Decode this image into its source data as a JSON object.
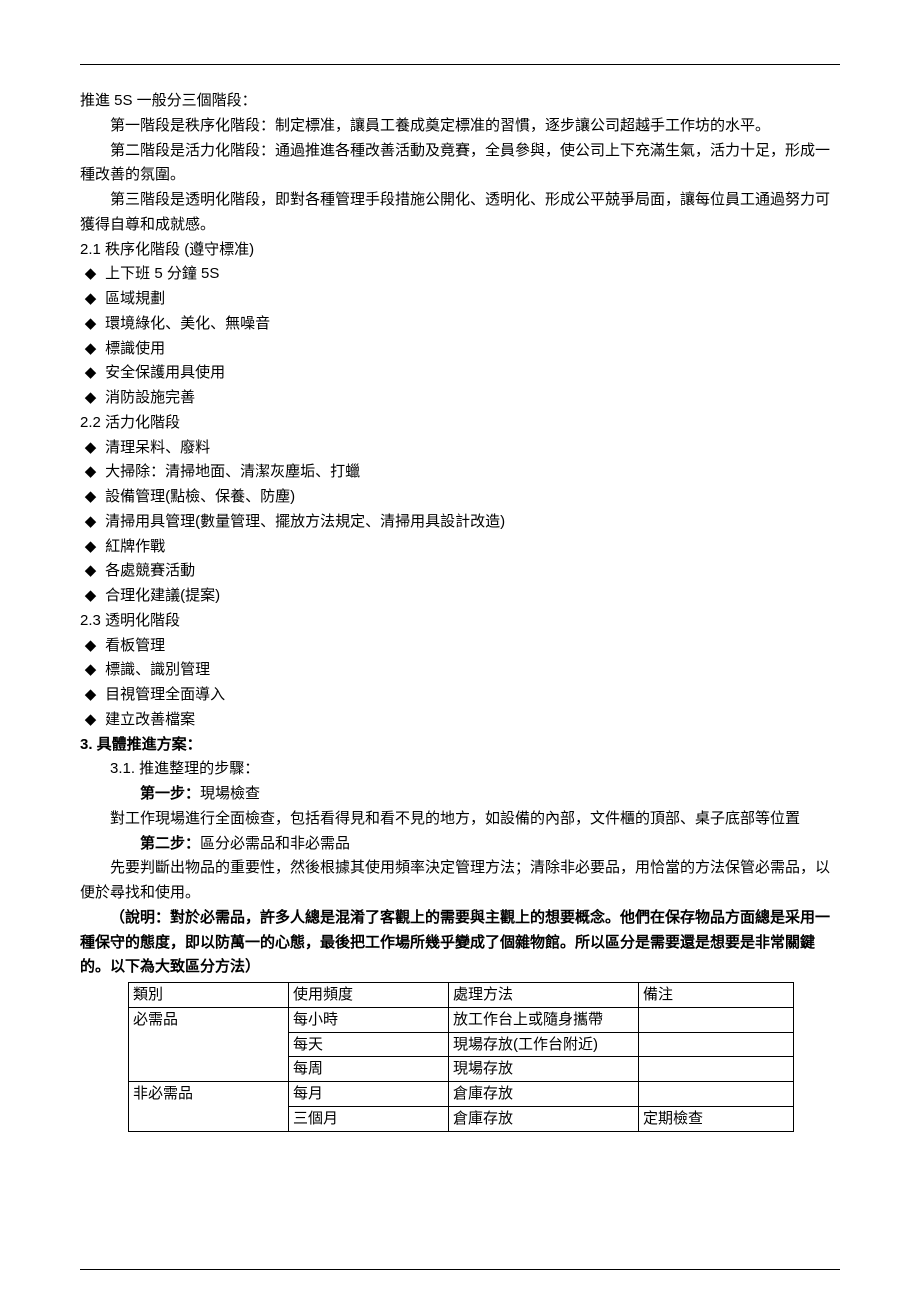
{
  "intro": [
    "推進 5S 一般分三個階段：",
    "第一階段是秩序化階段：制定標准，讓員工養成奠定標准的習慣，逐步讓公司超越手工作坊的水平。",
    "第二階段是活力化階段：通過推進各種改善活動及竟賽，全員參與，使公司上下充滿生氣，活力十足，形成一種改善的氛圍。",
    "第三階段是透明化階段，即對各種管理手段措施公開化、透明化、形成公平兢爭局面，讓每位員工通過努力可獲得自尊和成就感。"
  ],
  "s21": {
    "head": "2.1 秩序化階段 (遵守標准)",
    "items": [
      "上下班 5 分鐘 5S",
      "區域規劃",
      "環境綠化、美化、無噪音",
      "標識使用",
      "安全保護用具使用",
      "消防設施完善"
    ]
  },
  "s22": {
    "head": "2.2 活力化階段",
    "items": [
      "清理呆料、廢料",
      "大掃除：清掃地面、清潔灰塵垢、打蠟",
      "設備管理(點檢、保養、防塵)",
      "清掃用具管理(數量管理、擺放方法規定、清掃用具設計改造)",
      "紅牌作戰",
      "各處競賽活動",
      "合理化建議(提案)"
    ]
  },
  "s23": {
    "head": "2.3 透明化階段",
    "items": [
      "看板管理",
      "標識、識別管理",
      "目視管理全面導入",
      "建立改善檔案"
    ]
  },
  "s3head": "3. 具體推進方案：",
  "s31head": "3.1. 推進整理的步驟：",
  "step1": {
    "label": "第一步：",
    "title": "現場檢查",
    "body": "對工作現場進行全面檢查，包括看得見和看不見的地方，如設備的內部，文件櫃的頂部、桌子底部等位置"
  },
  "step2": {
    "label": "第二步：",
    "title": "區分必需品和非必需品",
    "body": "先要判斷出物品的重要性，然後根據其使用頻率決定管理方法；清除非必要品，用恰當的方法保管必需品，以便於尋找和使用。"
  },
  "note": "（說明：對於必需品，許多人總是混淆了客觀上的需要與主觀上的想要概念。他們在保存物品方面總是采用一種保守的態度，即以防萬一的心態，最後把工作場所幾乎變成了個雜物館。所以區分是需要還是想要是非常關鍵的。以下為大致區分方法）",
  "table": {
    "cols": [
      "類別",
      "使用頻度",
      "處理方法",
      "備注"
    ],
    "rows": [
      {
        "cat": "必需品",
        "freq": "每小時",
        "method": "放工作台上或隨身攜帶",
        "note": "",
        "span": 3
      },
      {
        "cat": "",
        "freq": "每天",
        "method": "現場存放(工作台附近)",
        "note": "",
        "span": 0
      },
      {
        "cat": "",
        "freq": "每周",
        "method": "現場存放",
        "note": "",
        "span": 0
      },
      {
        "cat": "非必需品",
        "freq": "每月",
        "method": "倉庫存放",
        "note": "",
        "span": 2
      },
      {
        "cat": "",
        "freq": "三個月",
        "method": "倉庫存放",
        "note": "定期檢查",
        "span": 0
      }
    ]
  },
  "bulletMark": "◆"
}
